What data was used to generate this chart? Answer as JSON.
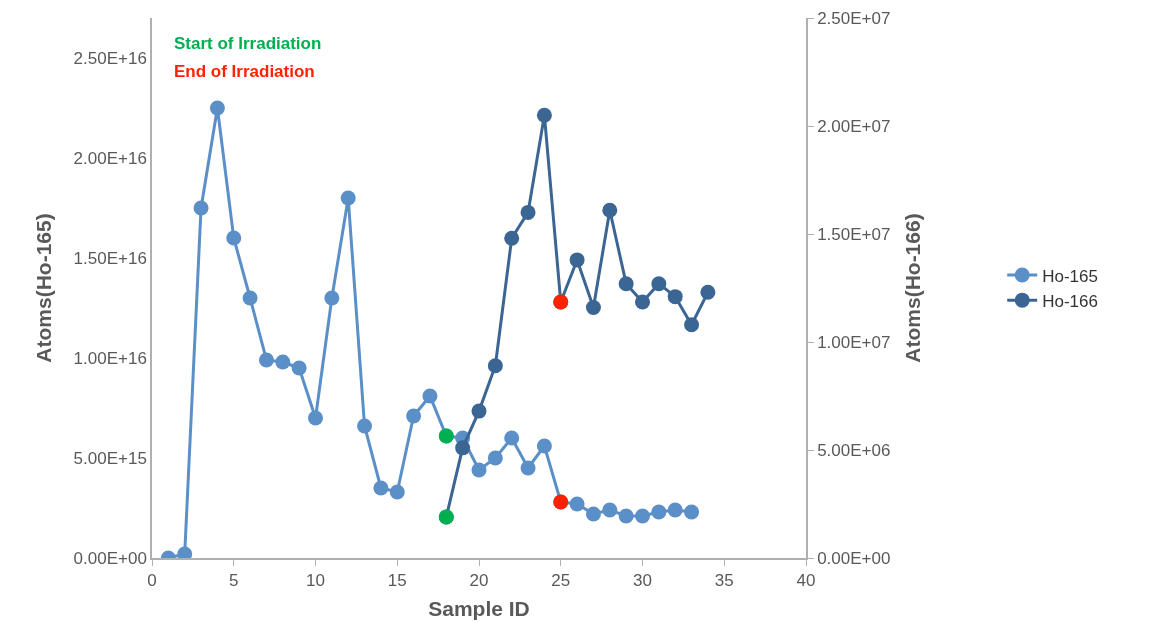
{
  "chart_data": {
    "type": "line",
    "xlabel": "Sample ID",
    "ylabel": "Atoms(Ho-165)",
    "y2label": "Atoms(Ho-166)",
    "annotations": [
      "Start of Irradiation",
      "End of Irradiation"
    ],
    "series": [
      {
        "name": "Ho-165",
        "color": "#5b8fc7",
        "x": [
          1,
          2,
          3,
          4,
          5,
          6,
          7,
          8,
          9,
          10,
          11,
          12,
          13,
          14,
          15,
          16,
          17,
          18,
          19,
          20,
          21,
          22,
          23,
          24,
          25,
          26,
          27,
          28,
          29,
          30,
          31,
          32,
          33
        ],
        "values": [
          0,
          200000000000000.0,
          1.75e+16,
          2.25e+16,
          1.6e+16,
          1.3e+16,
          9900000000000000.0,
          9800000000000000.0,
          9500000000000000.0,
          7000000000000000.0,
          1.3e+16,
          1.8e+16,
          6600000000000000.0,
          3500000000000000.0,
          3300000000000000.0,
          7100000000000000.0,
          8100000000000000.0,
          6100000000000000.0,
          6000000000000000.0,
          4400000000000000.0,
          5000000000000000.0,
          6000000000000000.0,
          4500000000000000.0,
          5600000000000000.0,
          2800000000000000.0,
          2700000000000000.0,
          2200000000000000.0,
          2400000000000000.0,
          2100000000000000.0,
          2100000000000000.0,
          2300000000000000.0,
          2400000000000000.0,
          2300000000000000.0
        ],
        "colors": [
          "#5b8fc7",
          "#5b8fc7",
          "#5b8fc7",
          "#5b8fc7",
          "#5b8fc7",
          "#5b8fc7",
          "#5b8fc7",
          "#5b8fc7",
          "#5b8fc7",
          "#5b8fc7",
          "#5b8fc7",
          "#5b8fc7",
          "#5b8fc7",
          "#5b8fc7",
          "#5b8fc7",
          "#5b8fc7",
          "#5b8fc7",
          "#00b050",
          "#5b8fc7",
          "#5b8fc7",
          "#5b8fc7",
          "#5b8fc7",
          "#5b8fc7",
          "#5b8fc7",
          "#ff2200",
          "#5b8fc7",
          "#5b8fc7",
          "#5b8fc7",
          "#5b8fc7",
          "#5b8fc7",
          "#5b8fc7",
          "#5b8fc7",
          "#5b8fc7"
        ]
      },
      {
        "name": "Ho-166",
        "color": "#3b6593",
        "axis": "y2",
        "x": [
          18,
          19,
          20,
          21,
          22,
          23,
          24,
          25,
          26,
          27,
          28,
          29,
          30,
          31,
          32,
          33,
          34
        ],
        "values": [
          1900000.0,
          5100000.0,
          6800000.0,
          8900000.0,
          14800000.0,
          16000000.0,
          20500000.0,
          11850000.0,
          13800000.0,
          11600000.0,
          16100000.0,
          12700000.0,
          11850000.0,
          12700000.0,
          12100000.0,
          10800000.0,
          12300000.0
        ],
        "colors": [
          "#00b050",
          "#3b6593",
          "#3b6593",
          "#3b6593",
          "#3b6593",
          "#3b6593",
          "#3b6593",
          "#ff2200",
          "#3b6593",
          "#3b6593",
          "#3b6593",
          "#3b6593",
          "#3b6593",
          "#3b6593",
          "#3b6593",
          "#3b6593",
          "#3b6593"
        ]
      }
    ],
    "xlim": [
      0,
      40
    ],
    "xticks": [
      0,
      5,
      10,
      15,
      20,
      25,
      30,
      35,
      40
    ],
    "ylim": [
      0,
      2.7e+16
    ],
    "yticks": [
      {
        "value": 0,
        "label": "0.00E+00"
      },
      {
        "value": 5000000000000000.0,
        "label": "5.00E+15"
      },
      {
        "value": 1e+16,
        "label": "1.00E+16"
      },
      {
        "value": 1.5e+16,
        "label": "1.50E+16"
      },
      {
        "value": 2e+16,
        "label": "2.00E+16"
      },
      {
        "value": 2.5e+16,
        "label": "2.50E+16"
      }
    ],
    "y2lim": [
      0,
      25000000.0
    ],
    "y2ticks": [
      {
        "value": 0,
        "label": "0.00E+00"
      },
      {
        "value": 5000000.0,
        "label": "5.00E+06"
      },
      {
        "value": 10000000.0,
        "label": "1.00E+07"
      },
      {
        "value": 15000000.0,
        "label": "1.50E+07"
      },
      {
        "value": 20000000.0,
        "label": "2.00E+07"
      },
      {
        "value": 25000000.0,
        "label": "2.50E+07"
      }
    ],
    "grid": false,
    "legend": "right",
    "marker": "circle",
    "line_style": "solid"
  }
}
